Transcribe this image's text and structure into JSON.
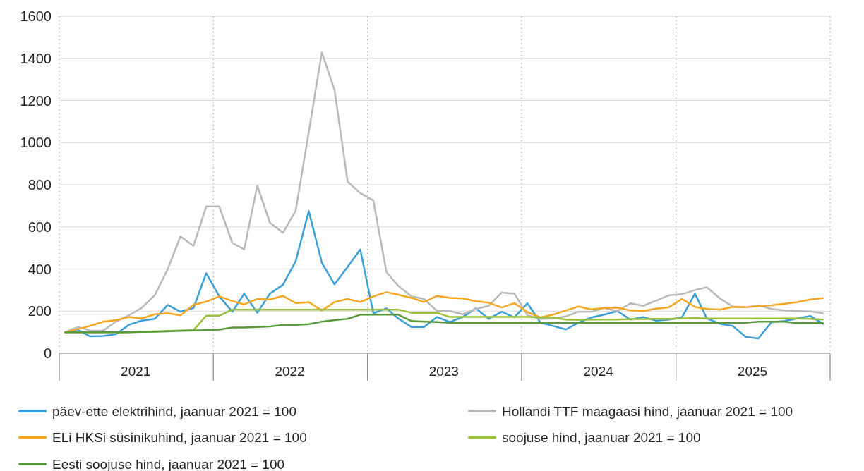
{
  "chart_data": {
    "type": "line",
    "x": [
      "2021-01-15",
      "2021-02-15",
      "2021-03-15",
      "2021-04-15",
      "2021-05-15",
      "2021-06-15",
      "2021-07-15",
      "2021-08-15",
      "2021-09-15",
      "2021-10-15",
      "2021-11-15",
      "2021-12-15",
      "2022-01-15",
      "2022-02-15",
      "2022-03-15",
      "2022-04-15",
      "2022-05-15",
      "2022-06-15",
      "2022-07-15",
      "2022-08-15",
      "2022-09-15",
      "2022-10-15",
      "2022-11-15",
      "2022-12-15",
      "2023-01-15",
      "2023-02-15",
      "2023-03-15",
      "2023-04-15",
      "2023-05-15",
      "2023-06-15",
      "2023-07-15",
      "2023-08-15",
      "2023-09-15",
      "2023-10-15",
      "2023-11-15",
      "2023-12-15",
      "2024-01-15",
      "2024-02-15",
      "2024-03-15",
      "2024-04-15",
      "2024-05-15",
      "2024-06-15",
      "2024-07-15",
      "2024-08-15",
      "2024-09-15",
      "2024-10-15",
      "2024-11-15",
      "2024-12-15",
      "2025-01-15",
      "2025-02-15",
      "2025-03-15",
      "2025-04-15",
      "2025-05-15",
      "2025-06-15",
      "2025-07-15",
      "2025-08-15",
      "2025-09-15",
      "2025-10-15",
      "2025-11-15",
      "2025-12-15"
    ],
    "xlim": [
      "2021-01-01",
      "2026-01-01"
    ],
    "xticks": [
      {
        "value": "2021-01-01",
        "label": null
      },
      {
        "value": "2021-07-01",
        "label": "2021"
      },
      {
        "value": "2022-01-01",
        "label": null
      },
      {
        "value": "2022-07-01",
        "label": "2022"
      },
      {
        "value": "2023-01-01",
        "label": null
      },
      {
        "value": "2023-07-01",
        "label": "2023"
      },
      {
        "value": "2024-01-01",
        "label": null
      },
      {
        "value": "2024-07-01",
        "label": "2024"
      },
      {
        "value": "2025-01-01",
        "label": null
      },
      {
        "value": "2025-07-01",
        "label": "2025"
      },
      {
        "value": "2026-01-01",
        "label": null
      }
    ],
    "ylim": [
      0,
      1600
    ],
    "yticks": [
      0,
      200,
      400,
      600,
      800,
      1000,
      1200,
      1400,
      1600
    ],
    "grid": true,
    "legend": "bottom",
    "marker": "none",
    "line_style": "solid",
    "series": [
      {
        "name": "päev-ette elektrihind, jaanuar 2021 = 100",
        "color": "#3a9fd8",
        "values": [
          100,
          110,
          80,
          82,
          90,
          135,
          155,
          163,
          230,
          197,
          215,
          380,
          270,
          197,
          283,
          192,
          283,
          325,
          437,
          675,
          430,
          327,
          410,
          493,
          190,
          213,
          165,
          125,
          125,
          172,
          148,
          172,
          213,
          163,
          197,
          170,
          237,
          145,
          130,
          113,
          145,
          170,
          183,
          200,
          160,
          172,
          155,
          160,
          170,
          283,
          165,
          140,
          130,
          78,
          70,
          147,
          153,
          165,
          177,
          140
        ]
      },
      {
        "name": "Hollandi TTF maagaasi hind, jaanuar 2021 = 100",
        "color": "#b9b9b9",
        "values": [
          100,
          125,
          108,
          107,
          150,
          180,
          215,
          275,
          400,
          555,
          510,
          697,
          697,
          523,
          493,
          795,
          620,
          572,
          677,
          1050,
          1428,
          1250,
          815,
          760,
          725,
          385,
          320,
          270,
          258,
          200,
          200,
          185,
          210,
          225,
          288,
          283,
          180,
          163,
          165,
          175,
          197,
          197,
          215,
          200,
          237,
          225,
          250,
          275,
          280,
          300,
          313,
          260,
          222,
          218,
          228,
          210,
          203,
          200,
          198,
          190
        ]
      },
      {
        "name": "ELi HKSi süsinikuhind, jaanuar 2021 = 100",
        "color": "#f5a623",
        "values": [
          100,
          115,
          130,
          150,
          157,
          172,
          165,
          185,
          190,
          180,
          230,
          245,
          270,
          248,
          232,
          258,
          255,
          272,
          238,
          243,
          203,
          243,
          258,
          243,
          270,
          290,
          278,
          263,
          243,
          272,
          263,
          260,
          247,
          240,
          217,
          238,
          195,
          170,
          183,
          203,
          222,
          208,
          215,
          217,
          203,
          200,
          212,
          218,
          258,
          220,
          210,
          207,
          220,
          218,
          223,
          228,
          235,
          243,
          255,
          262
        ]
      },
      {
        "name": "soojuse hind, jaanuar 2021 = 100",
        "color": "#9cc23c",
        "values": [
          100,
          100,
          100,
          100,
          100,
          100,
          102,
          104,
          106,
          108,
          110,
          178,
          178,
          207,
          207,
          207,
          207,
          207,
          207,
          207,
          207,
          207,
          207,
          207,
          207,
          207,
          207,
          192,
          192,
          192,
          172,
          172,
          172,
          172,
          172,
          172,
          172,
          170,
          170,
          160,
          158,
          160,
          160,
          160,
          162,
          162,
          163,
          163,
          165,
          167,
          165,
          165,
          165,
          165,
          165,
          165,
          165,
          165,
          163,
          160
        ]
      },
      {
        "name": "Eesti soojuse hind, jaanuar 2021 = 100",
        "color": "#5a9a3c",
        "values": [
          100,
          100,
          100,
          100,
          100,
          100,
          101,
          102,
          104,
          106,
          108,
          110,
          112,
          122,
          122,
          125,
          127,
          135,
          135,
          138,
          150,
          157,
          163,
          183,
          183,
          183,
          183,
          153,
          150,
          148,
          145,
          145,
          145,
          145,
          145,
          145,
          145,
          145,
          145,
          145,
          145,
          145,
          145,
          145,
          145,
          145,
          145,
          145,
          145,
          145,
          145,
          145,
          145,
          145,
          150,
          150,
          150,
          143,
          143,
          143
        ]
      }
    ]
  }
}
